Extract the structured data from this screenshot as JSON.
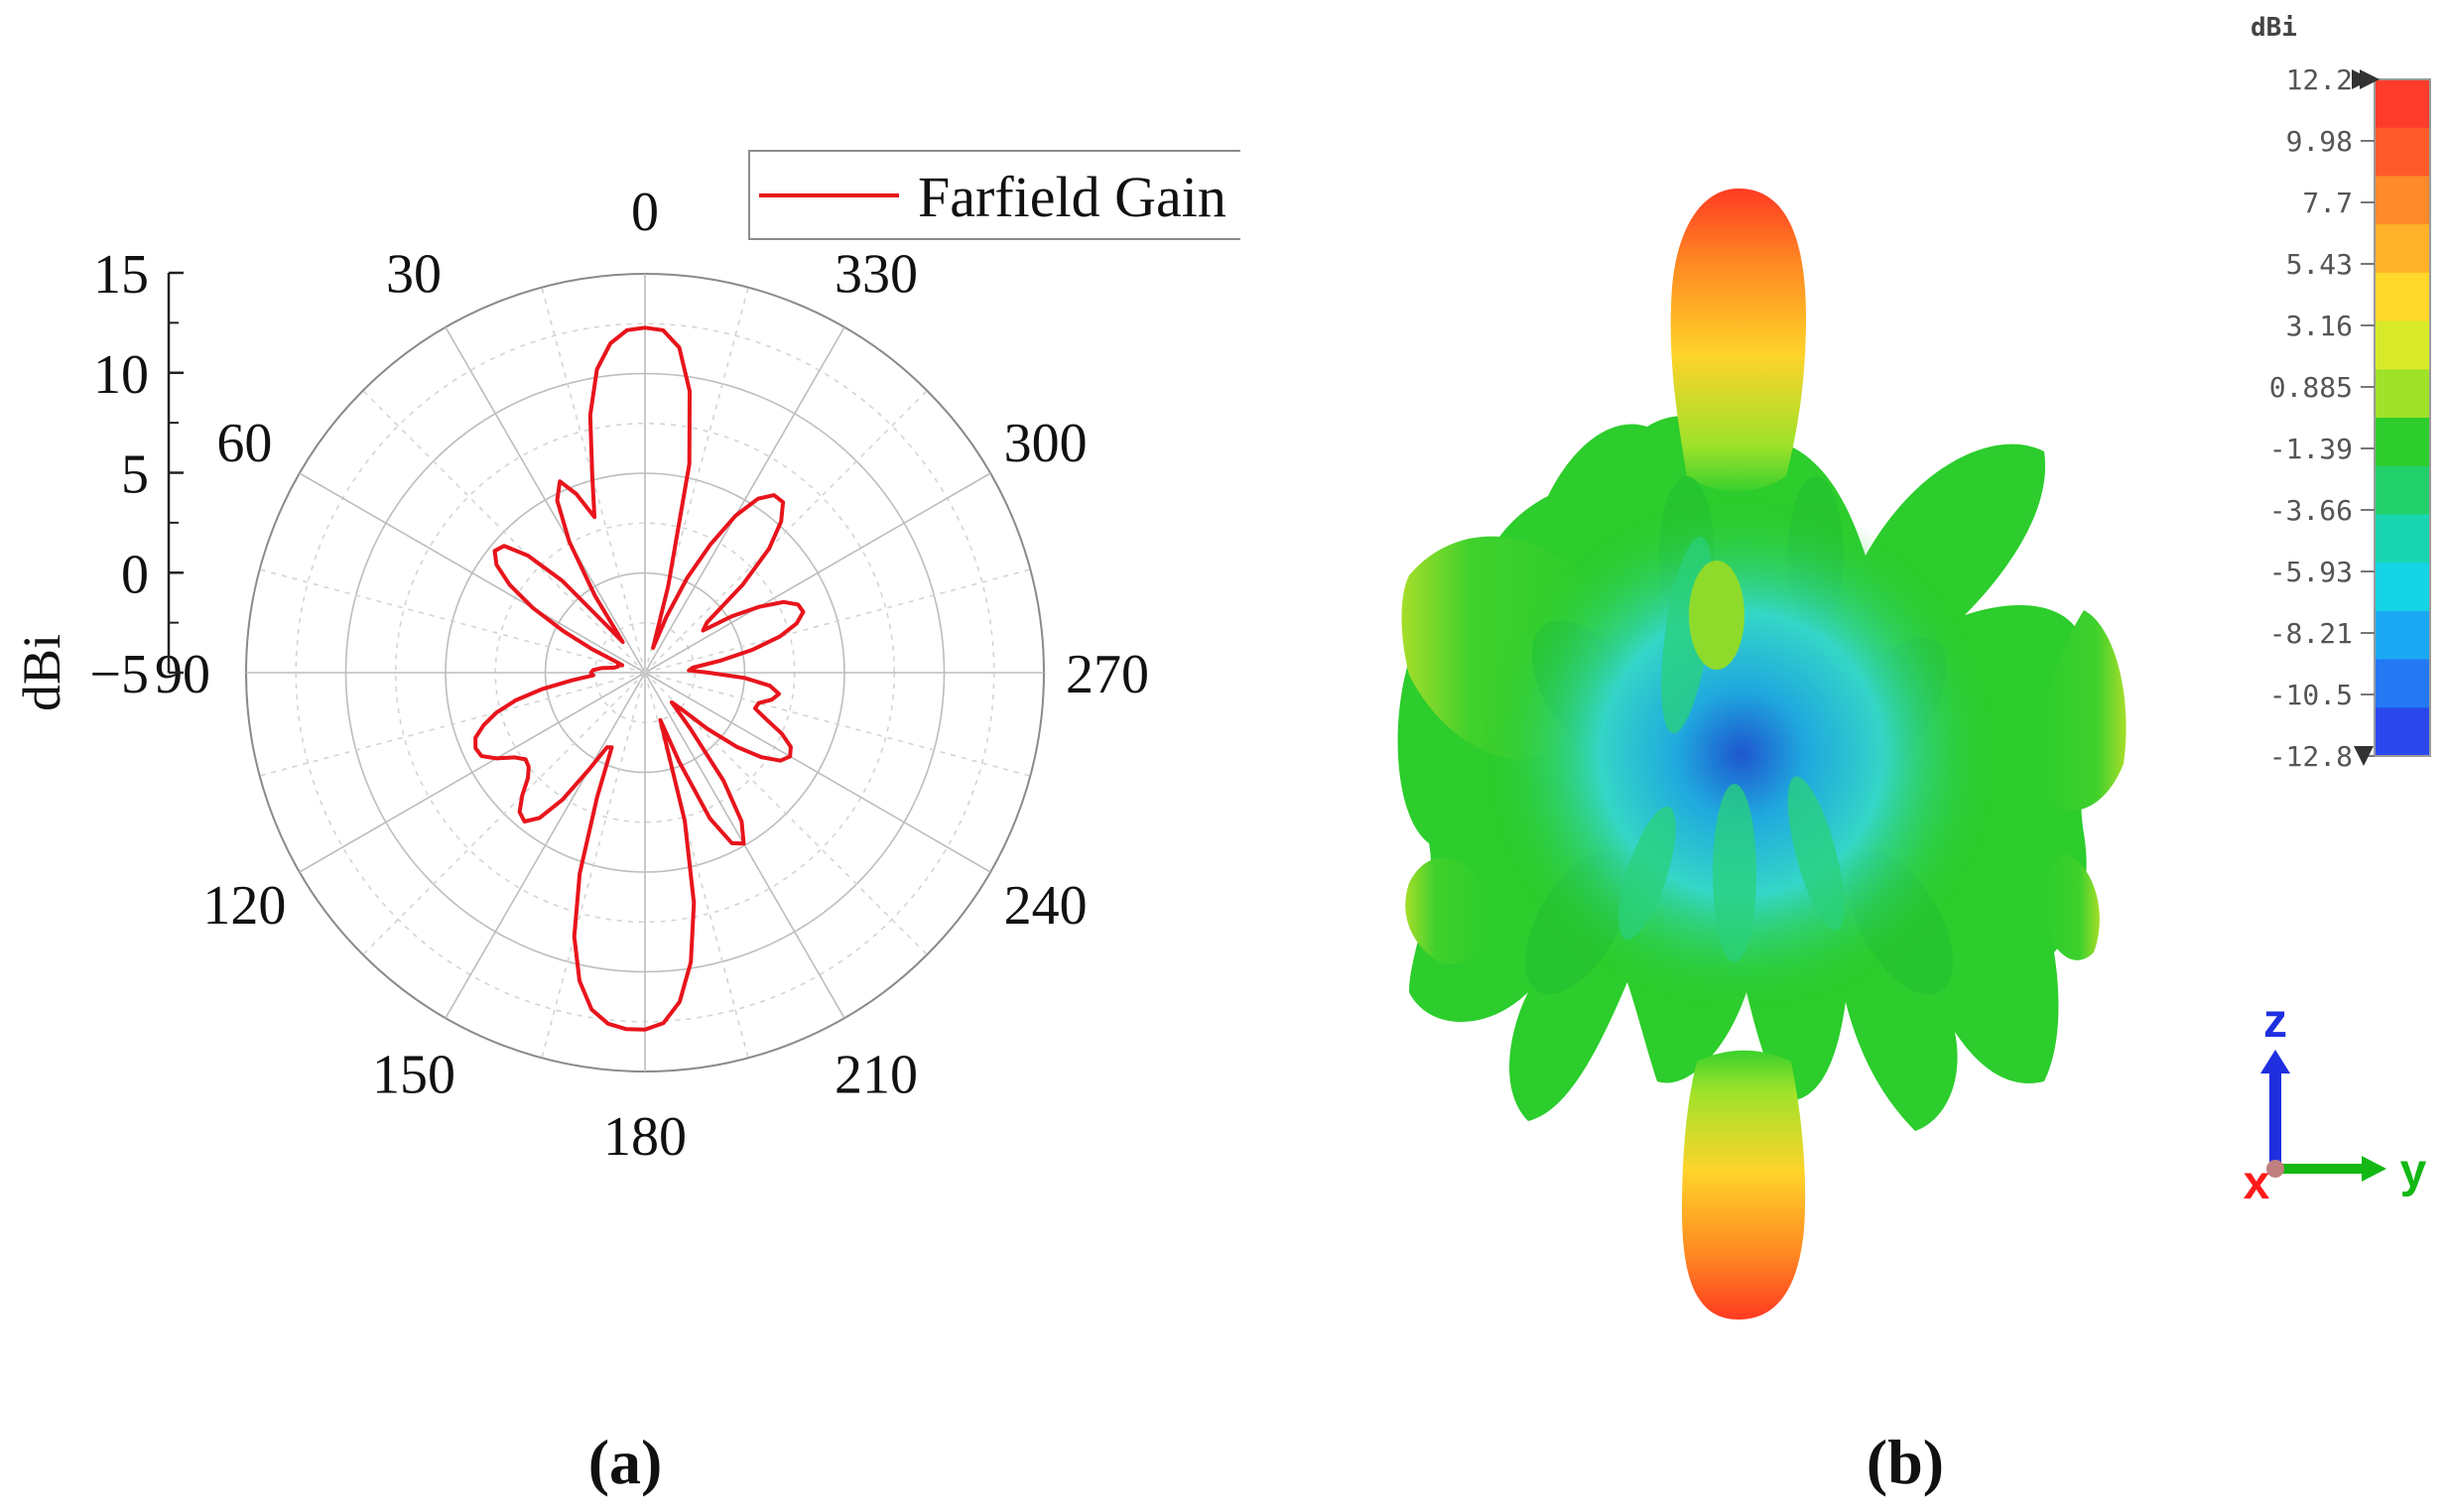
{
  "chart_data": [
    {
      "type": "polar-line",
      "panel_label": "(a)",
      "radial_axis": {
        "label": "dBi",
        "ticks": [
          15,
          10,
          5,
          0,
          -5
        ],
        "range": [
          -5,
          15
        ]
      },
      "angular_axis": {
        "direction": "counter-clockwise",
        "zero_at": "top",
        "ticks": [
          "0",
          "30",
          "60",
          "90",
          "120",
          "150",
          "180",
          "210",
          "240",
          "270",
          "300",
          "330"
        ]
      },
      "grid": true,
      "legend": {
        "placement": "top-right",
        "entries": [
          "Farfield Gain"
        ]
      },
      "series": [
        {
          "name": "Farfield Gain",
          "color": "#e8141c",
          "theta_deg": [
            0,
            3,
            6,
            9,
            12,
            15,
            18,
            21,
            24,
            27,
            30,
            33,
            36,
            39,
            42,
            45,
            48,
            51,
            54,
            57,
            60,
            63,
            66,
            69,
            72,
            75,
            78,
            81,
            84,
            87,
            90,
            93,
            96,
            99,
            102,
            105,
            108,
            111,
            114,
            117,
            120,
            123,
            126,
            129,
            132,
            135,
            138,
            141,
            144,
            147,
            150,
            153,
            156,
            159,
            162,
            165,
            168,
            171,
            174,
            177,
            180,
            183,
            186,
            189,
            192,
            195,
            198,
            201,
            204,
            207,
            210,
            213,
            216,
            219,
            222,
            225,
            228,
            231,
            234,
            237,
            240,
            243,
            246,
            249,
            252,
            255,
            258,
            261,
            264,
            267,
            270,
            273,
            276,
            279,
            282,
            285,
            288,
            291,
            294,
            297,
            300,
            303,
            306,
            309,
            312,
            315,
            318,
            321,
            324,
            327,
            330,
            333,
            336,
            339,
            342,
            345,
            348,
            351,
            354,
            357
          ],
          "gain_dbi": [
            12.3,
            12.2,
            11.6,
            10.4,
            8.2,
            5.2,
            3.2,
            4.6,
            5.5,
            4.7,
            2.6,
            -0.4,
            -3.1,
            -2.0,
            1.2,
            3.3,
            4.5,
            4.7,
            4.2,
            3.1,
            1.5,
            -0.4,
            -2.1,
            -3.4,
            -3.8,
            -3.6,
            -3.6,
            -3.4,
            -2.8,
            -2.4,
            -2.3,
            -2.4,
            -1.3,
            0.2,
            1.6,
            2.7,
            3.5,
            4.1,
            4.3,
            4.2,
            3.6,
            2.8,
            2.4,
            2.5,
            2.9,
            3.7,
            4.4,
            4.6,
            4.0,
            2.6,
            0.6,
            -0.8,
            -0.9,
            1.7,
            5.6,
            8.7,
            10.8,
            12.1,
            12.7,
            12.9,
            12.9,
            12.6,
            11.6,
            9.7,
            6.8,
            2.7,
            -2.5,
            -0.2,
            3.0,
            4.6,
            4.9,
            3.9,
            1.7,
            -1.4,
            -3.0,
            -2.4,
            -0.8,
            0.9,
            2.2,
            3.1,
            3.4,
            3.2,
            2.5,
            1.5,
            0.8,
            0.9,
            1.5,
            1.8,
            1.3,
            0.0,
            -1.8,
            -2.8,
            -2.6,
            -1.2,
            0.5,
            2.0,
            3.0,
            3.5,
            3.4,
            2.8,
            1.6,
            0.2,
            -1.4,
            -1.0,
            1.6,
            3.8,
            5.2,
            6.0,
            6.0,
            5.4,
            4.1,
            2.2,
            0.2,
            -2.0,
            -3.7,
            -0.5,
            5.7,
            9.3,
            11.4,
            12.2
          ]
        }
      ]
    },
    {
      "type": "3d-farfield",
      "panel_label": "(b)",
      "colorbar": {
        "unit": "dBi",
        "ticks": [
          "12.2",
          "9.98",
          "7.7",
          "5.43",
          "3.16",
          "0.885",
          "-1.39",
          "-3.66",
          "-5.93",
          "-8.21",
          "-10.5",
          "-12.8"
        ],
        "range": [
          -12.8,
          12.2
        ],
        "colors": [
          "#ff3b2b",
          "#ff5a2a",
          "#ff8a2a",
          "#ffb22a",
          "#ffd82a",
          "#d8ea2a",
          "#a0e22a",
          "#2ccd2c",
          "#22d06a",
          "#1ad6b0",
          "#14d4e6",
          "#1aa8f4",
          "#2478f4",
          "#2b48ee"
        ]
      },
      "axes_triad": [
        "z",
        "x",
        "y"
      ],
      "axes_triad_colors": {
        "z": "#1f2fe0",
        "x": "#ff1a1a",
        "y": "#14b814"
      }
    }
  ]
}
